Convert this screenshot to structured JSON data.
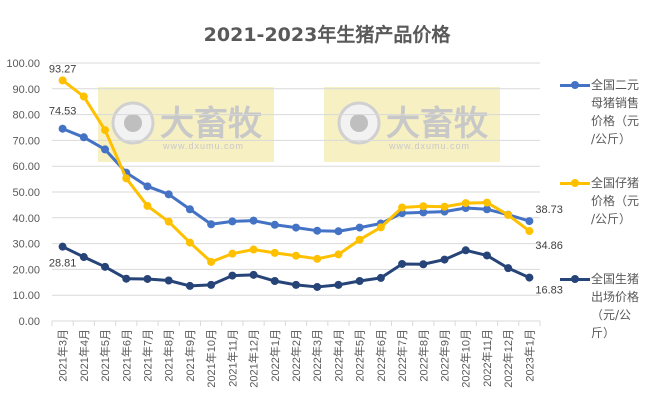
{
  "chart_data": {
    "type": "line",
    "title": "2021-2023年生猪产品价格",
    "xlabel": "",
    "ylabel": "",
    "ylim": [
      0,
      100
    ],
    "yticks": [
      "0.00",
      "10.00",
      "20.00",
      "30.00",
      "40.00",
      "50.00",
      "60.00",
      "70.00",
      "80.00",
      "90.00",
      "100.00"
    ],
    "grid": true,
    "legend_position": "right",
    "categories": [
      "2021年3月",
      "2021年4月",
      "2021年5月",
      "2021年6月",
      "2021年7月",
      "2021年8月",
      "2021年9月",
      "2021年10月",
      "2021年11月",
      "2021年12月",
      "2022年1月",
      "2022年2月",
      "2022年3月",
      "2022年4月",
      "2022年5月",
      "2022年6月",
      "2022年7月",
      "2022年8月",
      "2022年9月",
      "2022年10月",
      "2022年11月",
      "2022年12月",
      "2023年1月"
    ],
    "series": [
      {
        "name": "全国二元母猪销售价格（元/公斤）",
        "color": "#4472C4",
        "values": [
          74.53,
          71.2,
          66.5,
          57.5,
          52.2,
          49.1,
          43.3,
          37.5,
          38.6,
          38.9,
          37.3,
          36.2,
          35.0,
          34.8,
          36.2,
          37.8,
          41.8,
          42.1,
          42.4,
          43.8,
          43.3,
          41.2,
          38.73
        ]
      },
      {
        "name": "全国仔猪价格（元/公斤）",
        "color": "#FFC000",
        "values": [
          93.27,
          87.0,
          74.0,
          55.3,
          44.6,
          38.5,
          30.4,
          22.9,
          26.1,
          27.7,
          26.4,
          25.3,
          24.1,
          25.8,
          31.5,
          36.3,
          44.0,
          44.5,
          44.3,
          45.7,
          45.9,
          41.1,
          34.86
        ]
      },
      {
        "name": "全国生猪出场价格（元/公斤）",
        "color": "#264478",
        "values": [
          28.81,
          24.8,
          21.0,
          16.4,
          16.3,
          15.7,
          13.6,
          14.0,
          17.6,
          17.9,
          15.5,
          14.0,
          13.2,
          14.0,
          15.5,
          16.7,
          22.1,
          22.0,
          23.8,
          27.4,
          25.4,
          20.5,
          16.83
        ]
      }
    ],
    "data_labels": [
      {
        "series": 0,
        "index": 0,
        "text": "74.53"
      },
      {
        "series": 0,
        "index": 22,
        "text": "38.73"
      },
      {
        "series": 1,
        "index": 0,
        "text": "93.27"
      },
      {
        "series": 1,
        "index": 22,
        "text": "34.86"
      },
      {
        "series": 2,
        "index": 0,
        "text": "28.81"
      },
      {
        "series": 2,
        "index": 22,
        "text": "16.83"
      }
    ]
  },
  "legend": [
    {
      "lines": [
        "全国二元",
        "母猪销售",
        "价格（元",
        "/公斤）"
      ]
    },
    {
      "lines": [
        "全国仔猪",
        "价格（元",
        "/公斤）"
      ]
    },
    {
      "lines": [
        "全国生猪",
        "出场价格",
        "（元/公",
        "斤）"
      ]
    }
  ],
  "watermark": {
    "brand": "大畜牧",
    "url": "www.dxumu.com"
  }
}
